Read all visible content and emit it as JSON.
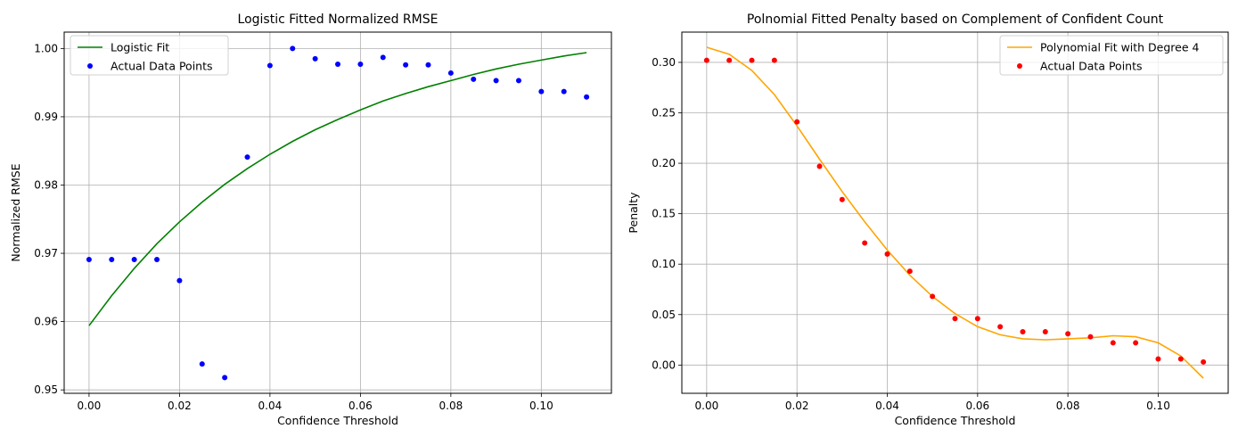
{
  "chart_data": [
    {
      "type": "line+scatter",
      "title": "Logistic Fitted Normalized RMSE",
      "xlabel": "Confidence Threshold",
      "ylabel": "Normalized RMSE",
      "xlim": [
        -0.0055,
        0.1155
      ],
      "ylim": [
        0.9495,
        1.0024
      ],
      "xticks": [
        0.0,
        0.02,
        0.04,
        0.06,
        0.08,
        0.1
      ],
      "xtick_labels": [
        "0.00",
        "0.02",
        "0.04",
        "0.06",
        "0.08",
        "0.10"
      ],
      "yticks": [
        0.95,
        0.96,
        0.97,
        0.98,
        0.99,
        1.0
      ],
      "ytick_labels": [
        "0.95",
        "0.96",
        "0.97",
        "0.98",
        "0.99",
        "1.00"
      ],
      "grid": true,
      "legend_position": "top-left",
      "series": [
        {
          "name": "Logistic Fit",
          "kind": "line",
          "color": "#008000",
          "x": [
            0.0,
            0.005,
            0.01,
            0.015,
            0.02,
            0.025,
            0.03,
            0.035,
            0.04,
            0.045,
            0.05,
            0.055,
            0.06,
            0.065,
            0.07,
            0.075,
            0.08,
            0.085,
            0.09,
            0.095,
            0.1,
            0.105,
            0.11
          ],
          "y": [
            0.9594,
            0.9638,
            0.9678,
            0.9714,
            0.9746,
            0.9775,
            0.9801,
            0.9824,
            0.9845,
            0.9864,
            0.9881,
            0.9896,
            0.991,
            0.9923,
            0.9934,
            0.9944,
            0.9953,
            0.9962,
            0.997,
            0.9977,
            0.9983,
            0.9989,
            0.9994
          ]
        },
        {
          "name": "Actual Data Points",
          "kind": "scatter",
          "color": "#0000ff",
          "x": [
            0.0,
            0.005,
            0.01,
            0.015,
            0.02,
            0.025,
            0.03,
            0.035,
            0.04,
            0.045,
            0.05,
            0.055,
            0.06,
            0.065,
            0.07,
            0.075,
            0.08,
            0.085,
            0.09,
            0.095,
            0.1,
            0.105,
            0.11
          ],
          "y": [
            0.9691,
            0.9691,
            0.9691,
            0.9691,
            0.966,
            0.9538,
            0.9518,
            0.9841,
            0.9975,
            1.0,
            0.9985,
            0.9977,
            0.9977,
            0.9987,
            0.9976,
            0.9976,
            0.9964,
            0.9955,
            0.9953,
            0.9953,
            0.9937,
            0.9937,
            0.9929
          ]
        }
      ]
    },
    {
      "type": "line+scatter",
      "title": "Polnomial Fitted Penalty based on Complement of Confident Count",
      "xlabel": "Confidence Threshold",
      "ylabel": "Penalty",
      "xlim": [
        -0.0055,
        0.1155
      ],
      "ylim": [
        -0.028,
        0.33
      ],
      "xticks": [
        0.0,
        0.02,
        0.04,
        0.06,
        0.08,
        0.1
      ],
      "xtick_labels": [
        "0.00",
        "0.02",
        "0.04",
        "0.06",
        "0.08",
        "0.10"
      ],
      "yticks": [
        0.0,
        0.05,
        0.1,
        0.15,
        0.2,
        0.25,
        0.3
      ],
      "ytick_labels": [
        "0.00",
        "0.05",
        "0.10",
        "0.15",
        "0.20",
        "0.25",
        "0.30"
      ],
      "grid": true,
      "legend_position": "top-right",
      "series": [
        {
          "name": "Polynomial Fit with Degree 4",
          "kind": "line",
          "color": "#ffa500",
          "x": [
            0.0,
            0.005,
            0.01,
            0.015,
            0.02,
            0.025,
            0.03,
            0.035,
            0.04,
            0.045,
            0.05,
            0.055,
            0.06,
            0.065,
            0.07,
            0.075,
            0.08,
            0.085,
            0.09,
            0.095,
            0.1,
            0.105,
            0.11
          ],
          "y": [
            0.315,
            0.308,
            0.292,
            0.268,
            0.237,
            0.204,
            0.172,
            0.142,
            0.114,
            0.089,
            0.068,
            0.051,
            0.038,
            0.03,
            0.026,
            0.025,
            0.026,
            0.027,
            0.029,
            0.028,
            0.022,
            0.009,
            -0.013
          ]
        },
        {
          "name": "Actual Data Points",
          "kind": "scatter",
          "color": "#ff0000",
          "x": [
            0.0,
            0.005,
            0.01,
            0.015,
            0.02,
            0.025,
            0.03,
            0.035,
            0.04,
            0.045,
            0.05,
            0.055,
            0.06,
            0.065,
            0.07,
            0.075,
            0.08,
            0.085,
            0.09,
            0.095,
            0.1,
            0.105,
            0.11
          ],
          "y": [
            0.302,
            0.302,
            0.302,
            0.302,
            0.241,
            0.197,
            0.164,
            0.121,
            0.11,
            0.093,
            0.068,
            0.046,
            0.046,
            0.038,
            0.033,
            0.033,
            0.031,
            0.028,
            0.022,
            0.022,
            0.006,
            0.006,
            0.003
          ]
        }
      ]
    }
  ]
}
